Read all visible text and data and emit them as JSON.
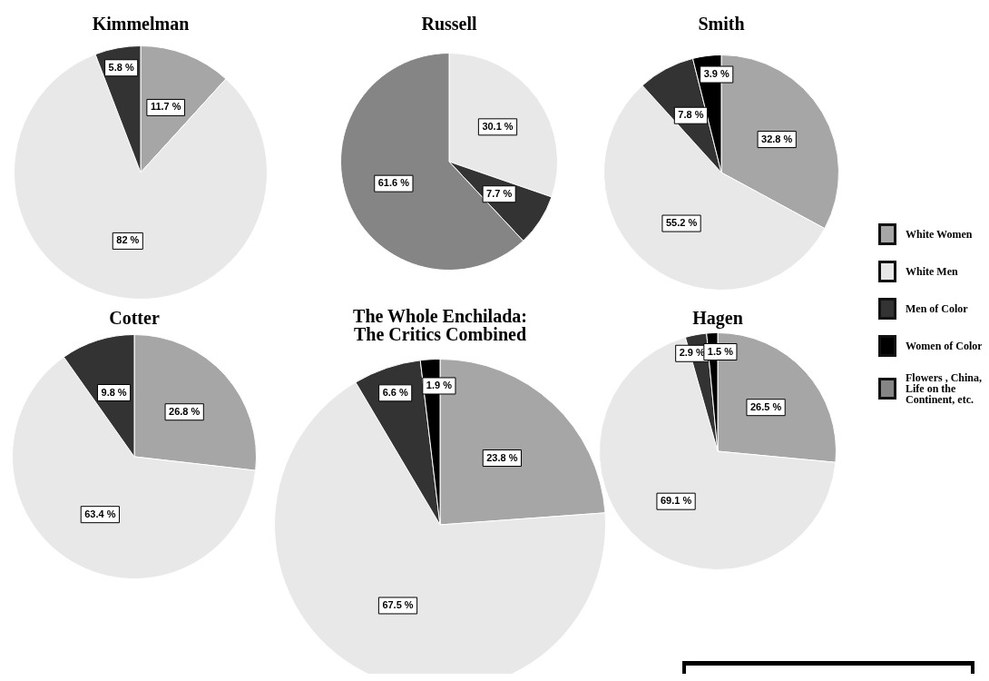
{
  "chart_data": [
    {
      "type": "pie",
      "title": "Kimmelman",
      "categories": [
        "White Women",
        "White Men",
        "Men of Color",
        "Women of Color",
        "Flowers , China, Life on the Continent, etc."
      ],
      "values": [
        11.7,
        82,
        5.8,
        null,
        null
      ],
      "value_labels": [
        "11.7 %",
        "82 %",
        "5.8 %",
        null,
        null
      ],
      "colors": [
        "#a6a6a6",
        "#e8e8e8",
        "#333333",
        "#000000",
        "#858585"
      ],
      "legend": "right"
    },
    {
      "type": "pie",
      "title": "Russell",
      "categories": [
        null,
        null,
        null,
        null,
        null
      ],
      "values": [
        null,
        30.1,
        7.7,
        null,
        61.6
      ],
      "value_labels": [
        null,
        "30.1 %",
        "7.7 %",
        null,
        "61.6 %"
      ],
      "colors": [
        "#a6a6a6",
        "#e8e8e8",
        "#333333",
        "#000000",
        "#858585"
      ]
    },
    {
      "type": "pie",
      "title": "Smith",
      "categories": [
        null,
        null,
        null,
        null,
        null
      ],
      "values": [
        32.8,
        55.2,
        7.8,
        3.9,
        null
      ],
      "value_labels": [
        "32.8 %",
        "55.2 %",
        "7.8 %",
        "3.9 %",
        null
      ],
      "colors": [
        "#a6a6a6",
        "#e8e8e8",
        "#333333",
        "#000000",
        "#858585"
      ]
    },
    {
      "type": "pie",
      "title": "Cotter",
      "categories": [
        null,
        null,
        null,
        null,
        null
      ],
      "values": [
        26.8,
        63.4,
        9.8,
        null,
        null
      ],
      "value_labels": [
        "26.8 %",
        "63.4 %",
        "9.8 %",
        null,
        null
      ],
      "colors": [
        "#a6a6a6",
        "#e8e8e8",
        "#333333",
        "#000000",
        "#858585"
      ]
    },
    {
      "type": "pie",
      "title": "The Whole Enchilada:\nThe Critics Combined",
      "categories": [
        null,
        null,
        null,
        null,
        null
      ],
      "values": [
        23.8,
        67.5,
        6.6,
        1.9,
        null
      ],
      "value_labels": [
        "23.8 %",
        "67.5 %",
        "6.6 %",
        "1.9 %",
        null
      ],
      "colors": [
        "#a6a6a6",
        "#e8e8e8",
        "#333333",
        "#000000",
        "#858585"
      ]
    },
    {
      "type": "pie",
      "title": "Hagen",
      "categories": [
        null,
        null,
        null,
        null,
        null
      ],
      "values": [
        26.5,
        69.1,
        2.9,
        1.5,
        null
      ],
      "value_labels": [
        "26.5 %",
        "69.1 %",
        "2.9 %",
        "1.5 %",
        null
      ],
      "colors": [
        "#a6a6a6",
        "#e8e8e8",
        "#333333",
        "#000000",
        "#858585"
      ]
    }
  ]
}
